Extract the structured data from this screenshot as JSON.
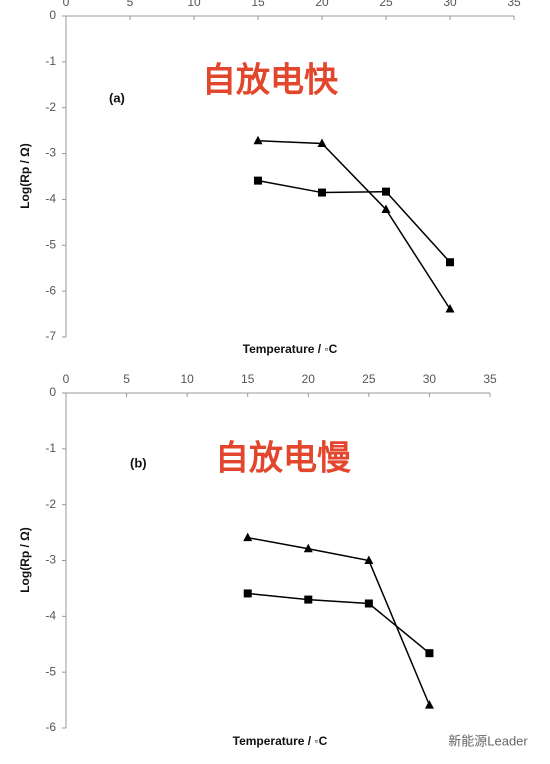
{
  "chart_data": [
    {
      "type": "line",
      "label": "(a)",
      "annotation": "自放电快",
      "x_label": "Temperature / ◦C",
      "y_label": "Log(Rp / Ω)",
      "x": [
        15,
        20,
        25,
        30
      ],
      "series": [
        {
          "marker": "triangle",
          "color": "#000000",
          "values": [
            -2.72,
            -2.78,
            -4.22,
            -6.39
          ]
        },
        {
          "marker": "square",
          "color": "#000000",
          "values": [
            -3.59,
            -3.85,
            -3.83,
            -5.37
          ]
        }
      ],
      "xlim": [
        0,
        35
      ],
      "xticks": [
        0,
        5,
        10,
        15,
        20,
        25,
        30,
        35
      ],
      "ylim": [
        -7,
        0
      ],
      "yticks": [
        0,
        -1,
        -2,
        -3,
        -4,
        -5,
        -6,
        -7
      ]
    },
    {
      "type": "line",
      "label": "(b)",
      "annotation": "自放电慢",
      "x_label": "Temperature / ◦C",
      "y_label": "Log(Rp / Ω)",
      "x": [
        15,
        20,
        25,
        30
      ],
      "series": [
        {
          "marker": "triangle",
          "color": "#000000",
          "values": [
            -2.59,
            -2.79,
            -3.0,
            -5.59
          ]
        },
        {
          "marker": "square",
          "color": "#000000",
          "values": [
            -3.59,
            -3.7,
            -3.77,
            -4.66
          ]
        }
      ],
      "xlim": [
        0,
        35
      ],
      "xticks": [
        0,
        5,
        10,
        15,
        20,
        25,
        30,
        35
      ],
      "ylim": [
        -6,
        0
      ],
      "yticks": [
        0,
        -1,
        -2,
        -3,
        -4,
        -5,
        -6
      ]
    }
  ],
  "watermark": "新能源Leader"
}
